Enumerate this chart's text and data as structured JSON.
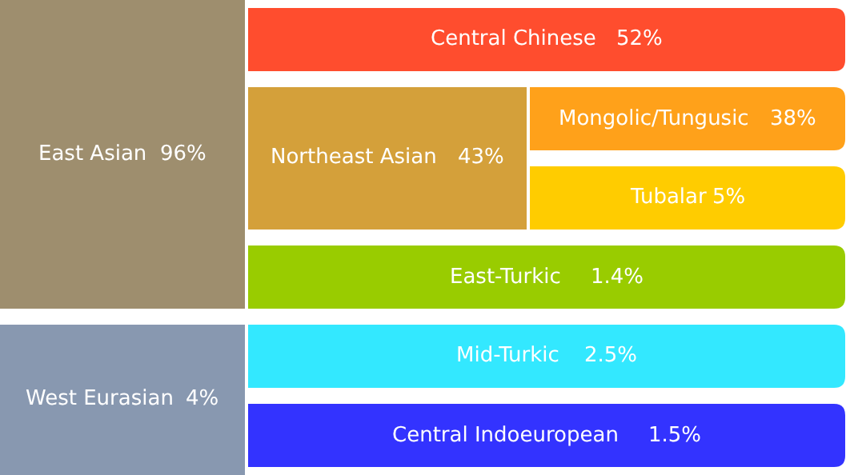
{
  "chart_data": {
    "type": "other",
    "categories": [
      "East Asian",
      "Central Chinese",
      "Northeast Asian",
      "Mongolic/Tungusic",
      "Tubalar",
      "East-Turkic",
      "West Eurasian",
      "Mid-Turkic",
      "Central Indoeuropean"
    ],
    "values": [
      96,
      52,
      43,
      38,
      5,
      1.4,
      4,
      2.5,
      1.5
    ],
    "value_labels": [
      "96%",
      "52%",
      "43%",
      "38%",
      "5%",
      "1.4%",
      "4%",
      "2.5%",
      "1.5%"
    ],
    "colors": [
      "#9e8e6e",
      "#ff4d2e",
      "#d4a03a",
      "#ffa11a",
      "#ffcc00",
      "#99cc00",
      "#8898b0",
      "#33e8ff",
      "#3333ff"
    ]
  }
}
